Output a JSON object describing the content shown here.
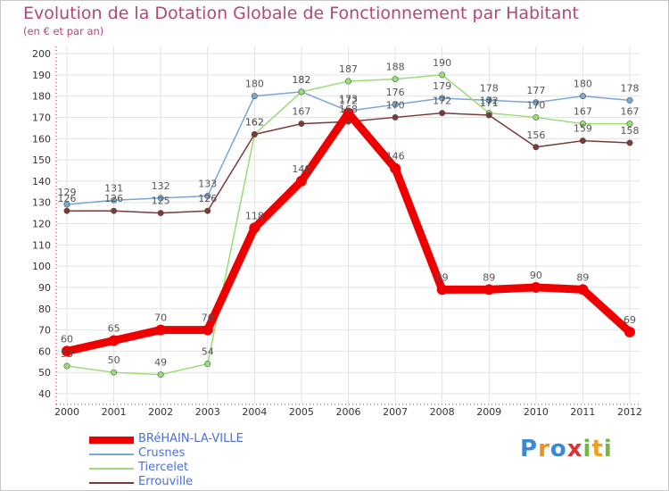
{
  "chart_data": {
    "type": "line",
    "title": "Evolution de la Dotation Globale de Fonctionnement par Habitant",
    "subtitle": "(en € et par an)",
    "xlabel": "",
    "ylabel": "",
    "categories": [
      "2000",
      "2001",
      "2002",
      "2003",
      "2004",
      "2005",
      "2006",
      "2007",
      "2008",
      "2009",
      "2010",
      "2011",
      "2012"
    ],
    "ylim": [
      40,
      200
    ],
    "yticks": [
      40,
      50,
      60,
      70,
      80,
      90,
      100,
      110,
      120,
      130,
      140,
      150,
      160,
      170,
      180,
      190,
      200
    ],
    "grid": true,
    "legend_position": "bottom-left",
    "series": [
      {
        "name": "BRéHAIN-LA-VILLE",
        "color": "#ee0000",
        "values": [
          60,
          65,
          70,
          70,
          118,
          140,
          172,
          146,
          89,
          89,
          90,
          89,
          69
        ]
      },
      {
        "name": "Crusnes",
        "color": "#7aa7d6",
        "values": [
          129,
          131,
          132,
          133,
          180,
          182,
          173,
          176,
          179,
          178,
          177,
          180,
          178
        ]
      },
      {
        "name": "Tiercelet",
        "color": "#99dd77",
        "values": [
          53,
          50,
          49,
          54,
          162,
          182,
          187,
          188,
          190,
          172,
          170,
          167,
          167
        ]
      },
      {
        "name": "Errouville",
        "color": "#7a3a3a",
        "values": [
          126,
          126,
          125,
          126,
          162,
          167,
          168,
          170,
          172,
          171,
          156,
          159,
          158
        ]
      }
    ]
  },
  "logo": {
    "letters": [
      "P",
      "r",
      "o",
      "x",
      "i",
      "t",
      "i"
    ],
    "colors": [
      "#3a88d8",
      "#f09020",
      "#3a88d8",
      "#e03030",
      "#70b840",
      "#f0a020",
      "#70b840"
    ]
  }
}
